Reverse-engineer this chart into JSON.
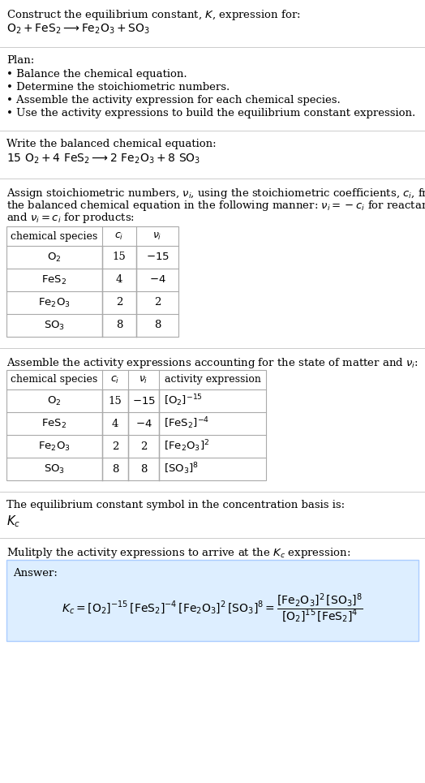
{
  "title": "Construct the equilibrium constant, $K$, expression for:",
  "unbalanced_eq": "$\\mathrm{O_2 + FeS_2 \\longrightarrow Fe_2O_3 + SO_3}$",
  "plan_header": "Plan:",
  "plan_items": [
    "• Balance the chemical equation.",
    "• Determine the stoichiometric numbers.",
    "• Assemble the activity expression for each chemical species.",
    "• Use the activity expressions to build the equilibrium constant expression."
  ],
  "balanced_header": "Write the balanced chemical equation:",
  "balanced_eq": "$\\mathrm{15\\ O_2 + 4\\ FeS_2 \\longrightarrow 2\\ Fe_2O_3 + 8\\ SO_3}$",
  "stoich_intro_lines": [
    "Assign stoichiometric numbers, $\\nu_i$, using the stoichiometric coefficients, $c_i$, from",
    "the balanced chemical equation in the following manner: $\\nu_i = -c_i$ for reactants",
    "and $\\nu_i = c_i$ for products:"
  ],
  "table1_headers": [
    "chemical species",
    "$c_i$",
    "$\\nu_i$"
  ],
  "table1_rows": [
    [
      "$\\mathrm{O_2}$",
      "15",
      "$-15$"
    ],
    [
      "$\\mathrm{FeS_2}$",
      "4",
      "$-4$"
    ],
    [
      "$\\mathrm{Fe_2O_3}$",
      "2",
      "2"
    ],
    [
      "$\\mathrm{SO_3}$",
      "8",
      "8"
    ]
  ],
  "activity_intro": "Assemble the activity expressions accounting for the state of matter and $\\nu_i$:",
  "table2_headers": [
    "chemical species",
    "$c_i$",
    "$\\nu_i$",
    "activity expression"
  ],
  "table2_rows": [
    [
      "$\\mathrm{O_2}$",
      "15",
      "$-15$",
      "$[\\mathrm{O_2}]^{-15}$"
    ],
    [
      "$\\mathrm{FeS_2}$",
      "4",
      "$-4$",
      "$[\\mathrm{FeS_2}]^{-4}$"
    ],
    [
      "$\\mathrm{Fe_2O_3}$",
      "2",
      "2",
      "$[\\mathrm{Fe_2O_3}]^{2}$"
    ],
    [
      "$\\mathrm{SO_3}$",
      "8",
      "8",
      "$[\\mathrm{SO_3}]^{8}$"
    ]
  ],
  "kc_intro": "The equilibrium constant symbol in the concentration basis is:",
  "kc_symbol": "$K_c$",
  "multiply_intro": "Mulitply the activity expressions to arrive at the $K_c$ expression:",
  "answer_label": "Answer:",
  "kc_line1": "$K_c = [\\mathrm{O_2}]^{-15}\\, [\\mathrm{FeS_2}]^{-4}\\, [\\mathrm{Fe_2O_3}]^{2}\\, [\\mathrm{SO_3}]^{8} = \\dfrac{[\\mathrm{Fe_2O_3}]^{2}\\, [\\mathrm{SO_3}]^{8}}{[\\mathrm{O_2}]^{15}\\, [\\mathrm{FeS_2}]^{4}}$",
  "bg_color": "#ffffff",
  "answer_bg": "#ddeeff",
  "answer_border": "#aaccff",
  "text_color": "#000000",
  "line_color": "#cccccc",
  "table_line_color": "#aaaaaa",
  "font_size": 9.5,
  "fig_width": 5.24,
  "fig_height": 9.65
}
